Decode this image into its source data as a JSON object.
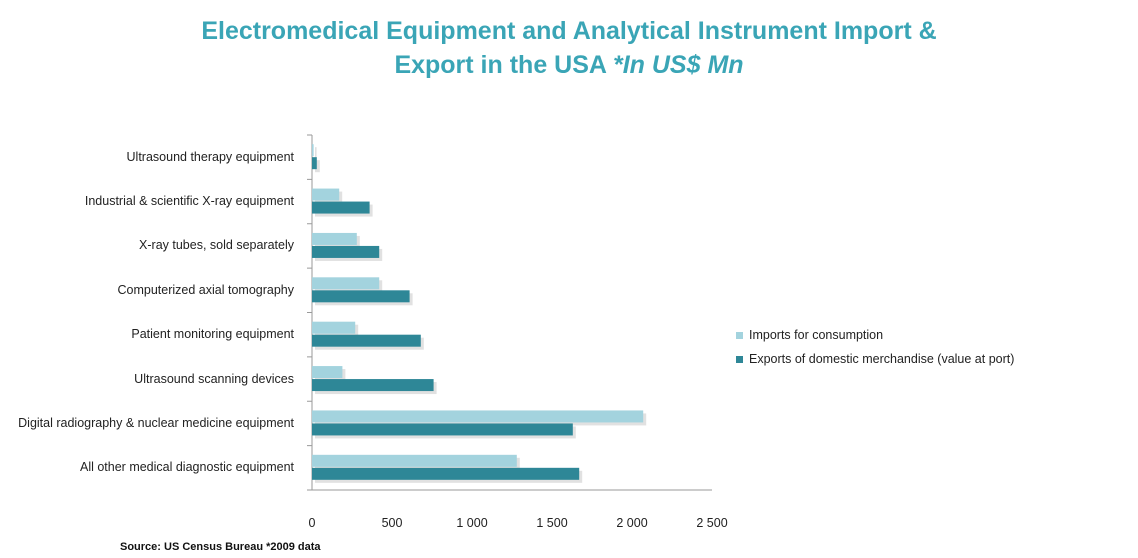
{
  "title": {
    "line1": "Electromedical Equipment and Analytical Instrument Import &",
    "line2_main": "Export in the USA ",
    "line2_italic": "*In US$ Mn"
  },
  "source": "Source: US Census Bureau  *2009 data",
  "colors": {
    "imports": "#a3d3de",
    "exports": "#2e8797",
    "title": "#3aa5b6",
    "axis": "#9a9a9a"
  },
  "chart_data": {
    "type": "bar",
    "orientation": "horizontal",
    "categories": [
      "Ultrasound therapy equipment",
      "Industrial & scientific X-ray equipment",
      "X-ray tubes, sold separately",
      "Computerized axial tomography",
      "Patient monitoring equipment",
      "Ultrasound scanning devices",
      "Digital radiography & nuclear medicine equipment",
      "All other medical diagnostic equipment"
    ],
    "series": [
      {
        "name": "Imports for  consumption",
        "values": [
          10,
          170,
          280,
          420,
          270,
          190,
          2070,
          1280
        ]
      },
      {
        "name": "Exports of domestic merchandise (value at port)",
        "values": [
          30,
          360,
          420,
          610,
          680,
          760,
          1630,
          1670
        ]
      }
    ],
    "xlim": [
      0,
      2500
    ],
    "xticks": [
      "0",
      "500",
      "1 000",
      "1 500",
      "2 000",
      "2 500"
    ],
    "legend_position": "right",
    "grid": false
  }
}
